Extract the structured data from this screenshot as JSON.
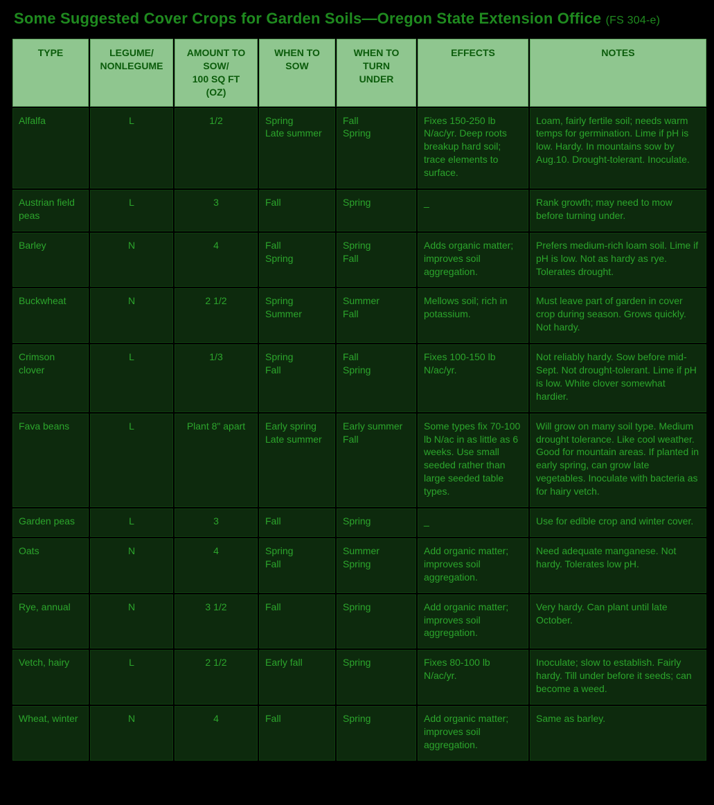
{
  "colors": {
    "page_bg": "#000000",
    "title_color": "#1f8a1f",
    "header_bg": "#8fc68f",
    "header_text": "#0b5c0b",
    "cell_bg": "#0d2a0d",
    "cell_text": "#2ca52c",
    "border_color": "#0f3e0f"
  },
  "title": {
    "main": "Some Suggested Cover Crops for Garden Soils—Oregon State Extension Office",
    "sub": "(FS 304-e)"
  },
  "table": {
    "columns": [
      {
        "key": "type",
        "label_lines": [
          "TYPE"
        ]
      },
      {
        "key": "legume",
        "label_lines": [
          "LEGUME/",
          "NONLEGUME"
        ]
      },
      {
        "key": "amount",
        "label_lines": [
          "AMOUNT TO",
          "SOW/",
          "100 SQ FT",
          "(OZ)"
        ]
      },
      {
        "key": "sow",
        "label_lines": [
          "WHEN TO",
          "SOW"
        ]
      },
      {
        "key": "turn",
        "label_lines": [
          "WHEN TO",
          "TURN",
          "UNDER"
        ]
      },
      {
        "key": "effects",
        "label_lines": [
          "EFFECTS"
        ]
      },
      {
        "key": "notes",
        "label_lines": [
          "NOTES"
        ]
      }
    ],
    "rows": [
      {
        "type": "Alfalfa",
        "legume": "L",
        "amount": "1/2",
        "sow_lines": [
          "Spring",
          "Late summer"
        ],
        "turn_lines": [
          "Fall",
          "Spring"
        ],
        "effects": "Fixes 150-250 lb N/ac/yr. Deep roots breakup hard soil; trace elements to surface.",
        "notes": "Loam, fairly fertile soil; needs warm temps for germination. Lime if pH is low. Hardy. In mountains sow by Aug.10. Drought-tolerant. Inoculate."
      },
      {
        "type": "Austrian field peas",
        "legume": "L",
        "amount": "3",
        "sow_lines": [
          "Fall"
        ],
        "turn_lines": [
          "Spring"
        ],
        "effects": "_",
        "notes": "Rank growth; may need to mow before turning under."
      },
      {
        "type": "Barley",
        "legume": "N",
        "amount": "4",
        "sow_lines": [
          "Fall",
          "Spring"
        ],
        "turn_lines": [
          "Spring",
          "Fall"
        ],
        "effects": "Adds organic matter; improves soil aggregation.",
        "notes": "Prefers medium-rich loam soil. Lime if pH is low. Not as hardy as rye. Tolerates drought."
      },
      {
        "type": "Buckwheat",
        "legume": "N",
        "amount": "2 1/2",
        "sow_lines": [
          "Spring",
          "Summer"
        ],
        "turn_lines": [
          "Summer",
          "Fall"
        ],
        "effects": "Mellows soil; rich in potassium.",
        "notes": "Must leave part of garden in cover crop during season. Grows quickly. Not hardy."
      },
      {
        "type": "Crimson clover",
        "legume": "L",
        "amount": "1/3",
        "sow_lines": [
          "Spring",
          "Fall"
        ],
        "turn_lines": [
          "Fall",
          "Spring"
        ],
        "effects": "Fixes 100-150 lb N/ac/yr.",
        "notes": "Not reliably hardy. Sow before mid-Sept. Not drought-tolerant. Lime if pH is low. White clover somewhat hardier."
      },
      {
        "type": "Fava beans",
        "legume": "L",
        "amount": "Plant 8\" apart",
        "sow_lines": [
          "Early spring",
          "Late summer"
        ],
        "turn_lines": [
          "Early summer",
          "Fall"
        ],
        "effects": "Some types fix 70-100 lb N/ac in as little as 6 weeks. Use small seeded rather than large seeded table types.",
        "notes": "Will grow on many soil type. Medium drought tolerance. Like cool weather. Good for mountain areas. If planted in early spring, can grow late vegetables. Inoculate with bacteria as for hairy vetch."
      },
      {
        "type": "Garden peas",
        "legume": "L",
        "amount": "3",
        "sow_lines": [
          "Fall"
        ],
        "turn_lines": [
          "Spring"
        ],
        "effects": "_",
        "notes": "Use for edible crop and winter cover."
      },
      {
        "type": "Oats",
        "legume": "N",
        "amount": "4",
        "sow_lines": [
          "Spring",
          "Fall"
        ],
        "turn_lines": [
          "Summer",
          "Spring"
        ],
        "effects": "Add organic matter; improves soil aggregation.",
        "notes": "Need adequate manganese. Not hardy. Tolerates low pH."
      },
      {
        "type": "Rye, annual",
        "legume": "N",
        "amount": "3 1/2",
        "sow_lines": [
          "Fall"
        ],
        "turn_lines": [
          "Spring"
        ],
        "effects": "Add organic matter; improves soil aggregation.",
        "notes": "Very hardy. Can plant until late October."
      },
      {
        "type": "Vetch, hairy",
        "legume": "L",
        "amount": "2 1/2",
        "sow_lines": [
          "Early fall"
        ],
        "turn_lines": [
          "Spring"
        ],
        "effects": "Fixes 80-100 lb N/ac/yr.",
        "notes": "Inoculate; slow to establish. Fairly hardy. Till under before it seeds; can become a weed."
      },
      {
        "type": "Wheat, winter",
        "legume": "N",
        "amount": "4",
        "sow_lines": [
          "Fall"
        ],
        "turn_lines": [
          "Spring"
        ],
        "effects": "Add organic matter; improves soil aggregation.",
        "notes": "Same as barley."
      }
    ]
  }
}
